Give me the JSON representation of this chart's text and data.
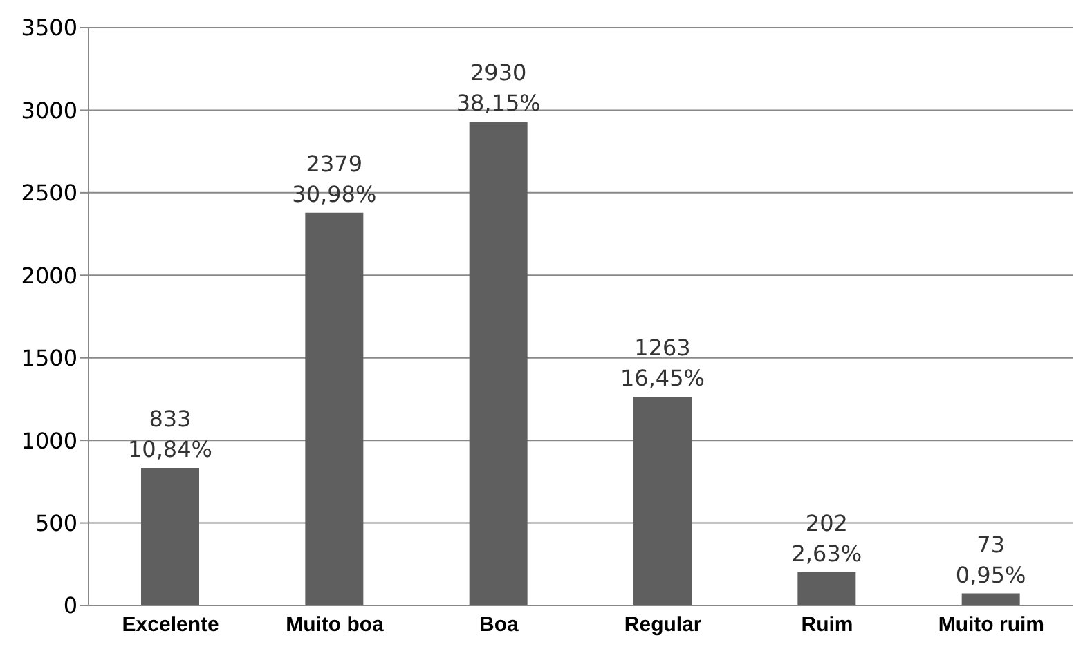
{
  "chart_data": {
    "type": "bar",
    "categories": [
      "Excelente",
      "Muito boa",
      "Boa",
      "Regular",
      "Ruim",
      "Muito ruim"
    ],
    "values": [
      833,
      2379,
      2930,
      1263,
      202,
      73
    ],
    "value_labels": [
      "833\n10,84%",
      "2379\n30,98%",
      "2930\n38,15%",
      "1263\n16,45%",
      "202\n2,63%",
      "73\n0,95%"
    ],
    "color": "#5f5f5f",
    "ylim": [
      0,
      3500
    ],
    "yticks": [
      0,
      500,
      1000,
      1500,
      2000,
      2500,
      3000,
      3500
    ],
    "grid": "y"
  }
}
